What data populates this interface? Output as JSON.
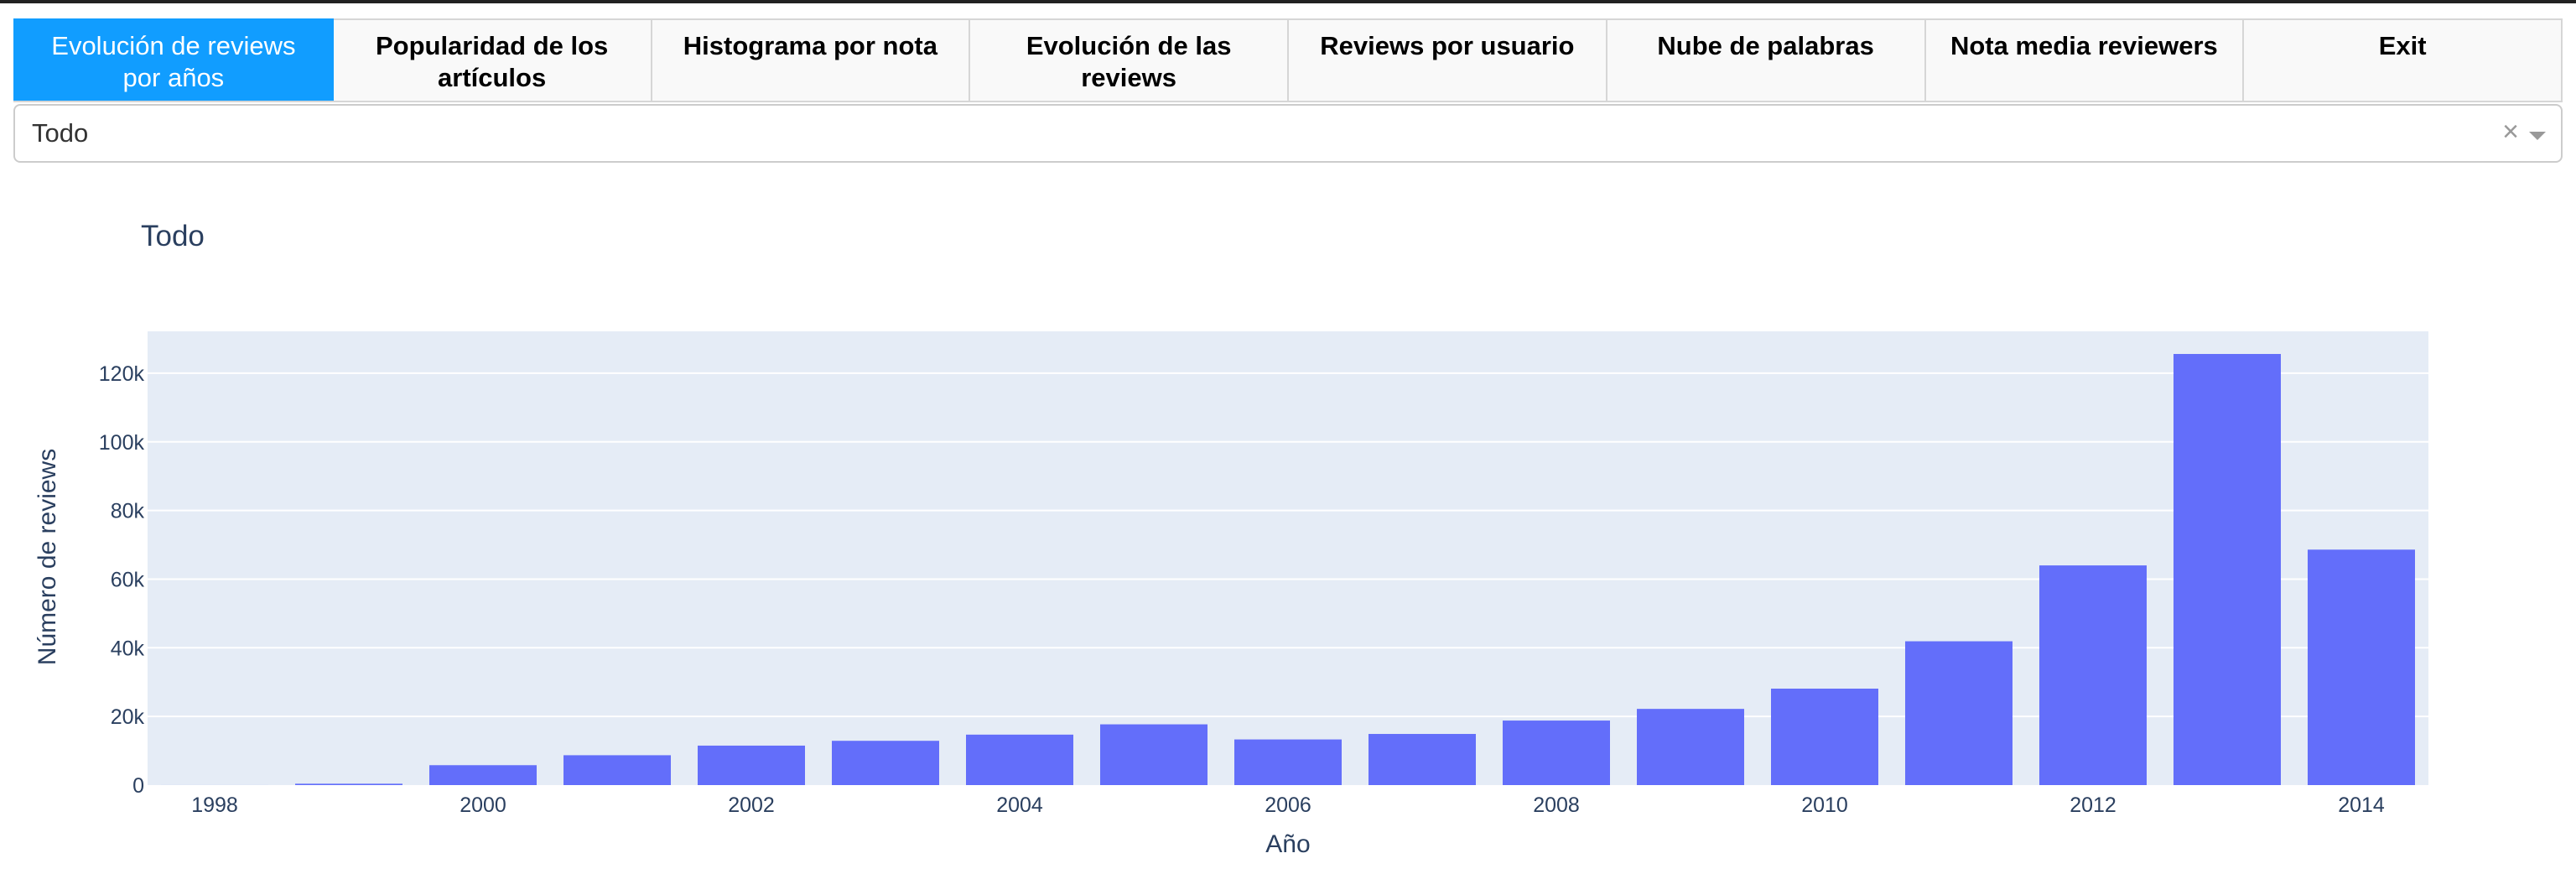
{
  "tabs": [
    {
      "label": "Evolución de reviews por años",
      "active": true
    },
    {
      "label": "Popularidad de los artículos",
      "active": false
    },
    {
      "label": "Histograma por nota",
      "active": false
    },
    {
      "label": "Evolución de las reviews",
      "active": false
    },
    {
      "label": "Reviews por usuario",
      "active": false
    },
    {
      "label": "Nube de palabras",
      "active": false
    },
    {
      "label": "Nota media reviewers",
      "active": false
    },
    {
      "label": "Exit",
      "active": false
    }
  ],
  "dropdown": {
    "value": "Todo",
    "clear_icon": "close-icon",
    "arrow_icon": "chevron-down-icon"
  },
  "colors": {
    "accent": "#119dff",
    "bar": "#636efa",
    "plot_bg": "#e5ecf6",
    "text": "#2a3f5f"
  },
  "chart_data": {
    "type": "bar",
    "title": "Todo",
    "xlabel": "Año",
    "ylabel": "Número de reviews",
    "categories": [
      1998,
      1999,
      2000,
      2001,
      2002,
      2003,
      2004,
      2005,
      2006,
      2007,
      2008,
      2009,
      2010,
      2011,
      2012,
      2013,
      2014
    ],
    "values": [
      6,
      400,
      5800,
      8700,
      11500,
      12900,
      14700,
      17700,
      13300,
      14900,
      18800,
      22200,
      28100,
      41900,
      64000,
      125600,
      68600
    ],
    "x_ticks": [
      1998,
      2000,
      2002,
      2004,
      2006,
      2008,
      2010,
      2012,
      2014
    ],
    "y_ticks": [
      0,
      20000,
      40000,
      60000,
      80000,
      100000,
      120000
    ],
    "y_tick_labels": [
      "0",
      "20k",
      "40k",
      "60k",
      "80k",
      "100k",
      "120k"
    ],
    "ylim": [
      0,
      132200
    ],
    "grid": true,
    "legend": false
  }
}
